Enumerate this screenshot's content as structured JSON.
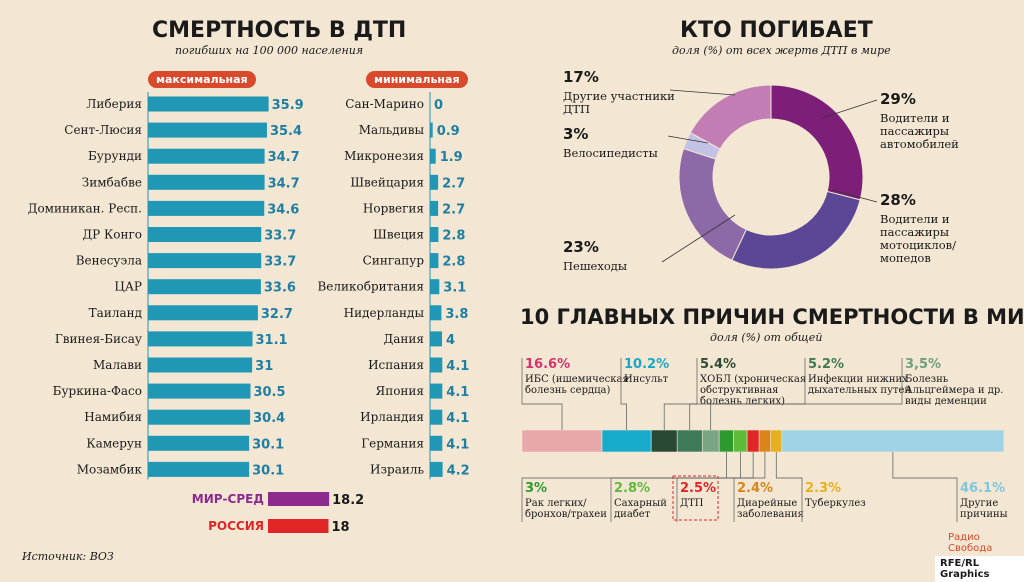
{
  "left": {
    "title": "СМЕРТНОСТЬ В ДТП",
    "subtitle": "погибших на 100 000 населения",
    "max_label": "максимальная",
    "min_label": "минимальная",
    "avg": {
      "label": "МИР-СРЕД",
      "value": 18.2,
      "color": "#8e2a8e"
    },
    "russia": {
      "label": "РОССИЯ",
      "value": 18,
      "color": "#e02626"
    }
  },
  "pie": {
    "title": "КТО ПОГИБАЕТ",
    "subtitle": "доля (%) от всех жертв ДТП в мире",
    "labels": [
      {
        "pct": "29%",
        "text": "Водители и пассажиры автомобилей"
      },
      {
        "pct": "28%",
        "text": "Водители и пассажиры мотоциклов/ мопедов"
      },
      {
        "pct": "23%",
        "text": "Пешеходы"
      },
      {
        "pct": "3%",
        "text": "Велосипедисты"
      },
      {
        "pct": "17%",
        "text": "Другие участники ДТП"
      }
    ]
  },
  "causes": {
    "title": "10 ГЛАВНЫХ ПРИЧИН СМЕРТНОСТИ В МИРЕ",
    "subtitle": "доля (%) от общей",
    "top": [
      {
        "pct": "16.6%",
        "text": "ИБС (ишемическая болезнь сердца)",
        "color": "#d6336c"
      },
      {
        "pct": "10.2%",
        "text": "Инсульт",
        "color": "#1aa7c7"
      },
      {
        "pct": "5.4%",
        "text": "ХОБЛ (хроническая обструктивная болезнь легких)",
        "color": "#2d4a35"
      },
      {
        "pct": "5.2%",
        "text": "Инфекции нижних дыхательных путей",
        "color": "#3f7a55"
      },
      {
        "pct": "3,5%",
        "text": "Болезнь Альцгеймера и др. виды деменции",
        "color": "#6d9f7a"
      }
    ],
    "bottom": [
      {
        "pct": "3%",
        "text": "Рак легких/ бронхов/трахеи",
        "color": "#2e9a2e"
      },
      {
        "pct": "2.8%",
        "text": "Сахарный диабет",
        "color": "#5fba3a"
      },
      {
        "pct": "2.5%",
        "text": "ДТП",
        "color": "#e02626"
      },
      {
        "pct": "2.4%",
        "text": "Диарейные заболевания",
        "color": "#d9851a"
      },
      {
        "pct": "2.3%",
        "text": "Туберкулез",
        "color": "#e8b020"
      },
      {
        "pct": "46.1%",
        "text": "Другие причины",
        "color": "#7fc6dc"
      }
    ]
  },
  "source": "Источник: ВОЗ",
  "credit": "RFE/RL Graphics",
  "logo": "Радио Свобода",
  "chart_data": [
    {
      "type": "bar",
      "title": "СМЕРТНОСТЬ В ДТП",
      "subtitle": "максимальная",
      "categories": [
        "Либерия",
        "Сент-Люсия",
        "Бурунди",
        "Зимбабве",
        "Доминикан. Респ.",
        "ДР Конго",
        "Венесуэла",
        "ЦАР",
        "Таиланд",
        "Гвинея-Бисау",
        "Малави",
        "Буркина-Фасо",
        "Намибия",
        "Камерун",
        "Мозамбик"
      ],
      "values": [
        35.9,
        35.4,
        34.7,
        34.7,
        34.6,
        33.7,
        33.7,
        33.6,
        32.7,
        31.1,
        31,
        30.5,
        30.4,
        30.1,
        30.1
      ],
      "labels": [
        "35.9",
        "35.4",
        "34.7",
        "34.7",
        "34.6",
        "33.7",
        "33.7",
        "33.6",
        "32.7",
        "31.1",
        "31",
        "30.5",
        "30.4",
        "30.1",
        "30.1"
      ],
      "color": "#1f97b5"
    },
    {
      "type": "bar",
      "title": "СМЕРТНОСТЬ В ДТП",
      "subtitle": "минимальная",
      "categories": [
        "Сан-Марино",
        "Мальдивы",
        "Микронезия",
        "Швейцария",
        "Норвегия",
        "Швеция",
        "Сингапур",
        "Великобритания",
        "Нидерланды",
        "Дания",
        "Испания",
        "Япония",
        "Ирландия",
        "Германия",
        "Израиль"
      ],
      "values": [
        0,
        0.9,
        1.9,
        2.7,
        2.7,
        2.8,
        2.8,
        3.1,
        3.8,
        4,
        4.1,
        4.1,
        4.1,
        4.1,
        4.2
      ],
      "labels": [
        "0",
        "0.9",
        "1.9",
        "2.7",
        "2.7",
        "2.8",
        "2.8",
        "3.1",
        "3.8",
        "4",
        "4.1",
        "4.1",
        "4.1",
        "4.1",
        "4.2"
      ],
      "color": "#1f97b5"
    },
    {
      "type": "pie",
      "title": "КТО ПОГИБАЕТ",
      "categories": [
        "Водители и пассажиры автомобилей",
        "Водители и пассажиры мотоциклов/ мопедов",
        "Пешеходы",
        "Велосипедисты",
        "Другие участники ДТП"
      ],
      "values": [
        29,
        28,
        23,
        3,
        17
      ],
      "colors": [
        "#7d1f78",
        "#5b4796",
        "#8d6aa7",
        "#c4c2e4",
        "#c27db4"
      ]
    },
    {
      "type": "bar",
      "title": "10 ГЛАВНЫХ ПРИЧИН СМЕРТНОСТИ В МИРЕ",
      "categories": [
        "ИБС (ишемическая болезнь сердца)",
        "Инсульт",
        "ХОБЛ (хроническая обструктивная болезнь легких)",
        "Инфекции нижних дыхательных путей",
        "Болезнь Альцгеймера и др. виды деменции",
        "Рак легких/ бронхов/трахеи",
        "Сахарный диабет",
        "ДТП",
        "Диарейные заболевания",
        "Туберкулез",
        "Другие причины"
      ],
      "values": [
        16.6,
        10.2,
        5.4,
        5.2,
        3.5,
        3,
        2.8,
        2.5,
        2.4,
        2.3,
        46.1
      ],
      "colors": [
        "#e8a8ab",
        "#16aacb",
        "#284833",
        "#3e7a58",
        "#7aa585",
        "#2e9a2e",
        "#5fba3a",
        "#e02626",
        "#d9851a",
        "#e8b020",
        "#9fd4e6"
      ]
    }
  ]
}
